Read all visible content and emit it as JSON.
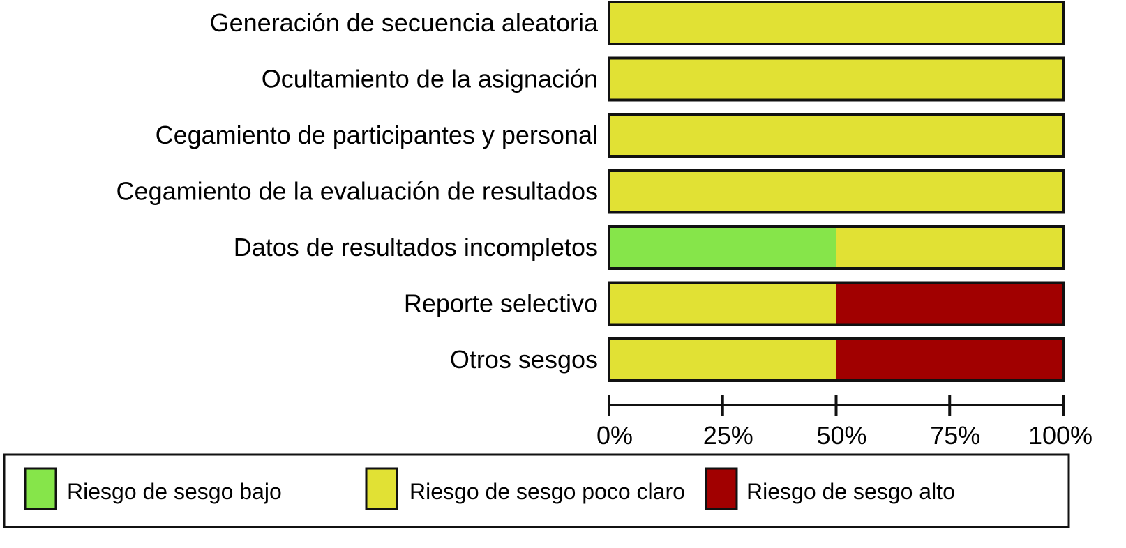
{
  "chart_data": {
    "type": "bar",
    "orientation": "horizontal",
    "stacked": true,
    "categories": [
      "Generación de secuencia aleatoria",
      "Ocultamiento de la asignación",
      "Cegamiento de participantes y personal",
      "Cegamiento de la evaluación de resultados",
      "Datos de resultados incompletos",
      "Reporte selectivo",
      "Otros sesgos"
    ],
    "series": [
      {
        "name": "Riesgo de sesgo bajo",
        "color": "#86e54a",
        "values": [
          0,
          0,
          0,
          0,
          50,
          0,
          0
        ]
      },
      {
        "name": "Riesgo de sesgo poco claro",
        "color": "#e1e134",
        "values": [
          100,
          100,
          100,
          100,
          50,
          50,
          50
        ]
      },
      {
        "name": "Riesgo de sesgo alto",
        "color": "#a10000",
        "values": [
          0,
          0,
          0,
          0,
          0,
          50,
          50
        ]
      }
    ],
    "xlim": [
      0,
      100
    ],
    "xticks": [
      "0%",
      "25%",
      "50%",
      "75%",
      "100%"
    ],
    "xtick_values": [
      0,
      25,
      50,
      75,
      100
    ],
    "grid": false,
    "legend_position": "bottom"
  }
}
